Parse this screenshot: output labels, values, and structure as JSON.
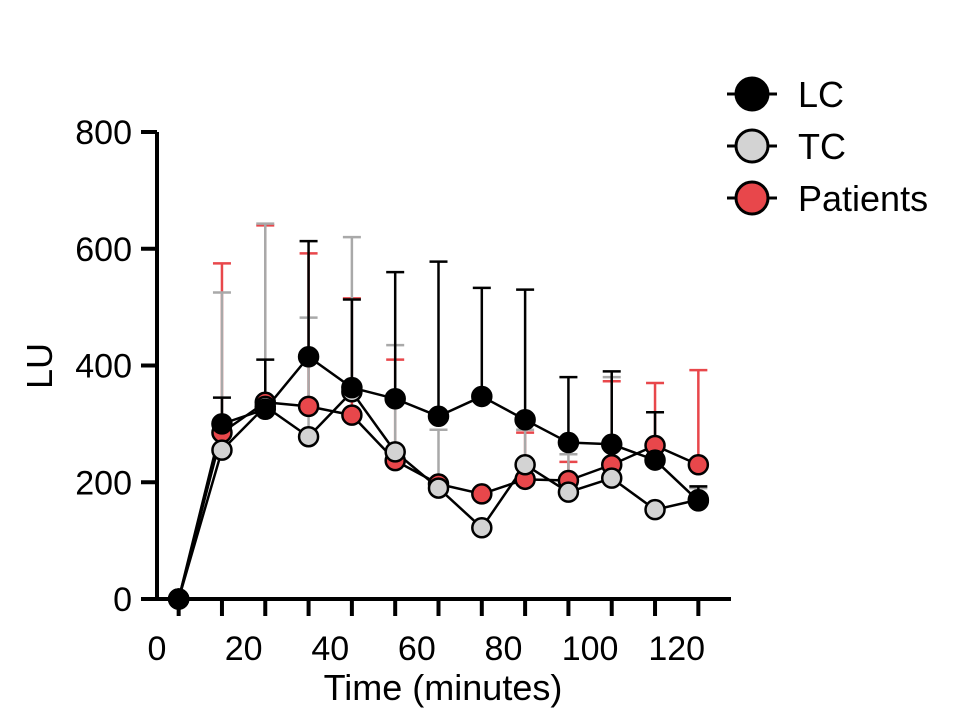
{
  "chart_data": {
    "type": "line",
    "title": "",
    "xlabel": "Time (minutes)",
    "ylabel": "LU",
    "xlim": [
      0,
      130
    ],
    "ylim": [
      0,
      800
    ],
    "xticks": [
      0,
      20,
      40,
      60,
      80,
      100,
      120
    ],
    "yticks": [
      0,
      200,
      400,
      600,
      800
    ],
    "grid": false,
    "legend_position": "top-right",
    "x": [
      5,
      15,
      25,
      35,
      45,
      55,
      65,
      75,
      85,
      95,
      105,
      115,
      125
    ],
    "series": [
      {
        "name": "Patients",
        "color": "#e8474b",
        "values": [
          0,
          285,
          337,
          330,
          315,
          237,
          197,
          180,
          205,
          203,
          230,
          263,
          230
        ],
        "error_upper": [
          null,
          575,
          640,
          592,
          515,
          410,
          null,
          null,
          285,
          235,
          373,
          370,
          392
        ]
      },
      {
        "name": "TC",
        "color": "#d3d3d3",
        "values": [
          0,
          255,
          330,
          278,
          355,
          252,
          190,
          122,
          230,
          183,
          207,
          153,
          170
        ],
        "error_upper": [
          null,
          525,
          643,
          482,
          620,
          435,
          290,
          null,
          290,
          248,
          380,
          null,
          190
        ]
      },
      {
        "name": "LC",
        "color": "#000000",
        "values": [
          0,
          300,
          325,
          415,
          362,
          343,
          313,
          347,
          307,
          268,
          265,
          238,
          168
        ],
        "error_upper": [
          null,
          345,
          410,
          613,
          513,
          560,
          578,
          533,
          530,
          380,
          390,
          320,
          193
        ]
      }
    ]
  }
}
